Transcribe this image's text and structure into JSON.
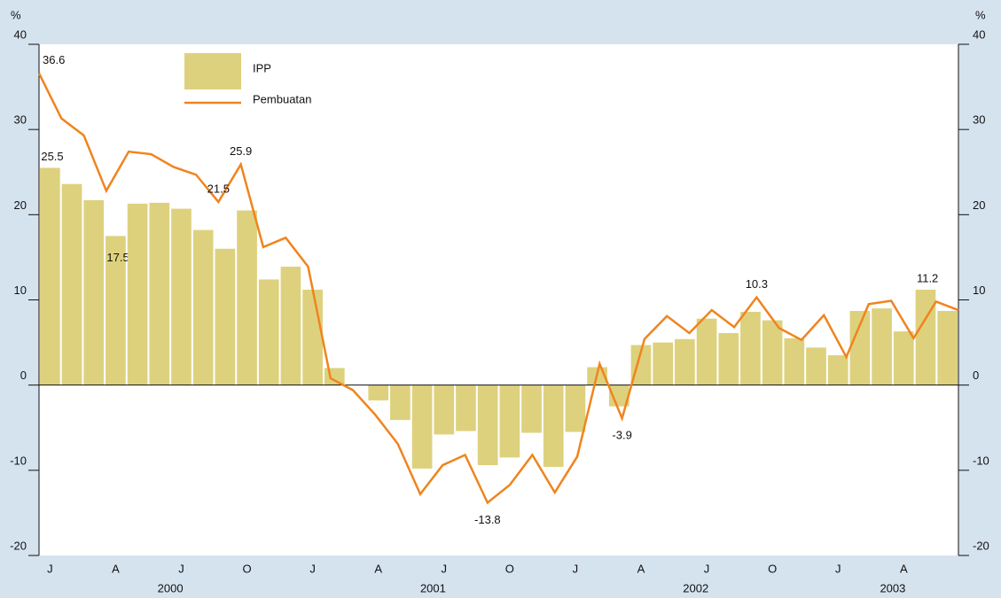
{
  "chart_data": {
    "type": "bar-line",
    "y_unit": "%",
    "y2_unit": "%",
    "categories": [
      "J",
      null,
      null,
      "A",
      null,
      null,
      "J",
      null,
      null,
      "O",
      null,
      null,
      "J",
      null,
      null,
      "A",
      null,
      null,
      "J",
      null,
      null,
      "O",
      null,
      null,
      "J",
      null,
      null,
      "A",
      null,
      null,
      "J",
      null,
      null,
      "O",
      null,
      null,
      "J",
      null,
      null,
      "A",
      null,
      null
    ],
    "years": [
      "2000",
      "2001",
      "2002",
      "2003"
    ],
    "series": [
      {
        "name": "IPP",
        "kind": "bar",
        "color": "#ded17e",
        "values": [
          25.5,
          23.6,
          21.7,
          17.5,
          21.3,
          21.4,
          20.7,
          18.2,
          16.0,
          20.5,
          12.4,
          13.9,
          11.2,
          2.0,
          0,
          -1.8,
          -4.1,
          -9.8,
          -5.8,
          -5.4,
          -9.4,
          -8.5,
          -5.6,
          -9.6,
          -5.5,
          2.1,
          -2.5,
          4.7,
          5.0,
          5.4,
          7.8,
          6.1,
          8.6,
          7.6,
          5.5,
          4.4,
          3.5,
          8.7,
          9.0,
          6.3,
          11.2,
          8.7
        ],
        "value_labels": [
          "25.5",
          null,
          null,
          "17.5",
          null,
          null,
          null,
          null,
          null,
          null,
          null,
          null,
          null,
          null,
          null,
          null,
          null,
          null,
          null,
          null,
          null,
          null,
          null,
          null,
          null,
          null,
          null,
          null,
          null,
          null,
          null,
          null,
          null,
          null,
          null,
          null,
          null,
          null,
          null,
          null,
          "11.2",
          null
        ]
      },
      {
        "name": "Pembuatan",
        "kind": "line",
        "color": "#f0841e",
        "values": [
          36.6,
          31.3,
          29.3,
          22.8,
          27.4,
          27.1,
          25.6,
          24.7,
          21.5,
          25.9,
          16.2,
          17.3,
          13.9,
          0.8,
          -0.6,
          -3.5,
          -6.9,
          -12.8,
          -9.4,
          -8.2,
          -13.8,
          -11.7,
          -8.2,
          -12.6,
          -8.4,
          2.5,
          -3.9,
          5.4,
          8.1,
          6.1,
          8.8,
          6.8,
          10.3,
          6.7,
          5.3,
          8.2,
          3.3,
          9.5,
          9.9,
          5.5,
          9.8,
          8.8
        ],
        "value_labels": [
          "36.6",
          null,
          null,
          null,
          null,
          null,
          null,
          null,
          "21.5",
          "25.9",
          null,
          null,
          null,
          null,
          null,
          null,
          null,
          null,
          null,
          null,
          "-13.8",
          null,
          null,
          null,
          null,
          null,
          "-3.9",
          null,
          null,
          null,
          null,
          null,
          "10.3",
          null,
          null,
          null,
          null,
          null,
          null,
          null,
          null,
          null
        ]
      }
    ],
    "ylim": [
      -20,
      40
    ],
    "yticks": [
      -20,
      -10,
      0,
      10,
      20,
      30,
      40
    ],
    "y2lim": [
      -20,
      40
    ],
    "y2ticks": [
      -20,
      -10,
      0,
      10,
      20,
      30,
      40
    ]
  }
}
